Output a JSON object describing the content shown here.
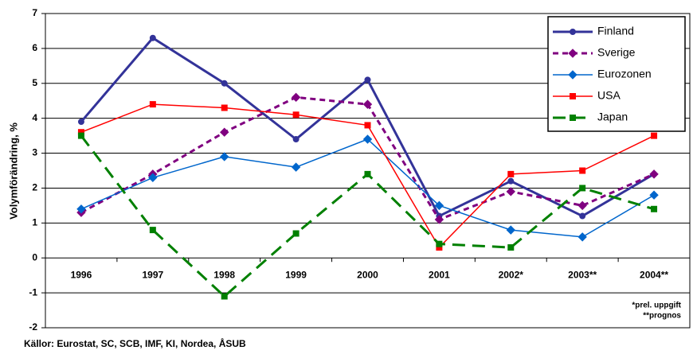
{
  "chart_data": {
    "type": "line",
    "y_label": "Volymförändring, %",
    "categories": [
      "1996",
      "1997",
      "1998",
      "1999",
      "2000",
      "2001",
      "2002*",
      "2003**",
      "2004**"
    ],
    "series": [
      {
        "name": "Finland",
        "color": "#333399",
        "marker": "circle",
        "dash": "none",
        "width": 3,
        "values": [
          3.9,
          6.3,
          5.0,
          3.4,
          5.1,
          1.2,
          2.2,
          1.2,
          2.4
        ]
      },
      {
        "name": "Sverige",
        "color": "#800080",
        "marker": "diamond",
        "dash": "7,5",
        "width": 3,
        "values": [
          1.3,
          2.4,
          3.6,
          4.6,
          4.4,
          1.1,
          1.9,
          1.5,
          2.4
        ]
      },
      {
        "name": "Eurozonen",
        "color": "#0066cc",
        "marker": "diamond",
        "dash": "none",
        "width": 1.5,
        "values": [
          1.4,
          2.3,
          2.9,
          2.6,
          3.4,
          1.5,
          0.8,
          0.6,
          1.8
        ]
      },
      {
        "name": "USA",
        "color": "#ff0000",
        "marker": "square",
        "dash": "none",
        "width": 1.5,
        "values": [
          3.6,
          4.4,
          4.3,
          4.1,
          3.8,
          0.3,
          2.4,
          2.5,
          3.5
        ]
      },
      {
        "name": "Japan",
        "color": "#008000",
        "marker": "square",
        "dash": "16,9",
        "width": 3,
        "values": [
          3.5,
          0.8,
          -1.1,
          0.7,
          2.4,
          0.4,
          0.3,
          2.0,
          1.4
        ]
      }
    ],
    "ylim": [
      -2,
      7
    ],
    "yticks": [
      -2,
      -1,
      0,
      1,
      2,
      3,
      4,
      5,
      6,
      7
    ],
    "grid": true,
    "legend": "top-right",
    "annotations": [
      "*prel. uppgift",
      "**prognos"
    ],
    "source": "Källor: Eurostat, SC, SCB, IMF, KI, Nordea, ÅSUB"
  }
}
